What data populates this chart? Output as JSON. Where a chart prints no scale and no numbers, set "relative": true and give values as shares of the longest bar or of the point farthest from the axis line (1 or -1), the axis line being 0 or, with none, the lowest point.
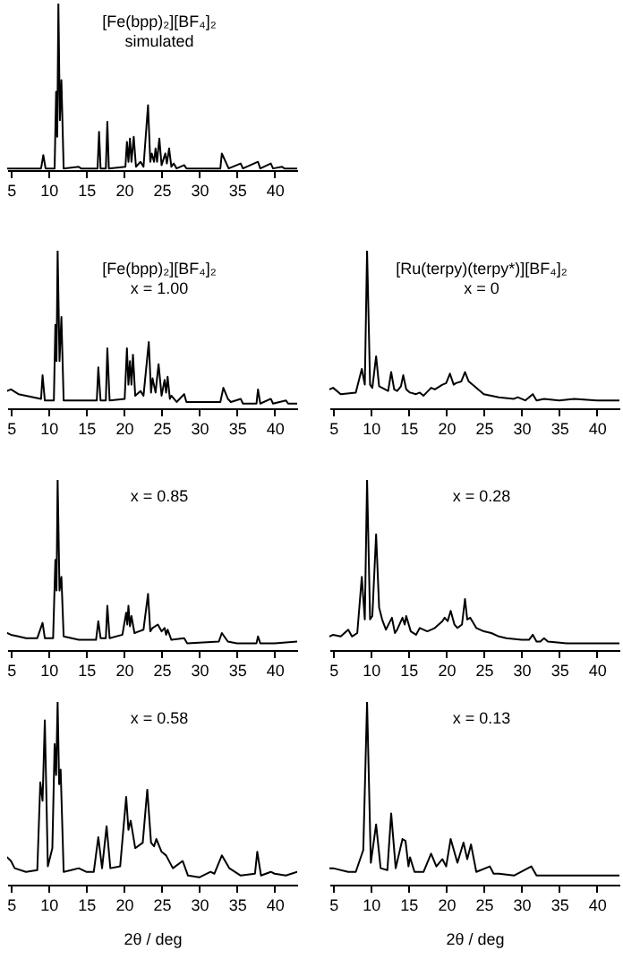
{
  "chart_data": [
    {
      "type": "line",
      "title": "[Fe(bpp)₂][BF₄]₂",
      "subtitle": "simulated",
      "relative": true,
      "xlim": [
        4.5,
        43
      ],
      "xticks": [
        5,
        10,
        15,
        20,
        25,
        30,
        35,
        40
      ],
      "tick_labels": "x",
      "marker": "none",
      "line_style": "solid",
      "series": [
        {
          "color": "#000000",
          "x": [
            4.5,
            9.0,
            9.3,
            9.6,
            10.8,
            11.0,
            11.15,
            11.3,
            11.5,
            11.7,
            12.0,
            14.0,
            14.3,
            16.5,
            16.7,
            16.9,
            17.6,
            17.8,
            18.0,
            20.2,
            20.4,
            20.6,
            20.8,
            21.0,
            21.3,
            21.6,
            22.2,
            22.6,
            23.2,
            23.5,
            23.7,
            24.0,
            24.2,
            24.4,
            24.7,
            25.0,
            25.5,
            25.7,
            26.0,
            26.3,
            26.6,
            27.0,
            28.0,
            28.3,
            32.8,
            33.0,
            33.5,
            33.9,
            35.5,
            35.8,
            37.8,
            38.1,
            39.5,
            39.8,
            41.0,
            41.3,
            43
          ],
          "values": [
            0.01,
            0.01,
            0.09,
            0.01,
            0.01,
            0.47,
            0.2,
            1,
            0.3,
            0.54,
            0.01,
            0.02,
            0.01,
            0.01,
            0.23,
            0.01,
            0.01,
            0.29,
            0.01,
            0.02,
            0.17,
            0.05,
            0.19,
            0.05,
            0.2,
            0.02,
            0.05,
            0.02,
            0.39,
            0.05,
            0.1,
            0.05,
            0.13,
            0.05,
            0.19,
            0.03,
            0.1,
            0.04,
            0.13,
            0.02,
            0.04,
            0.01,
            0.03,
            0.01,
            0.01,
            0.1,
            0.05,
            0.01,
            0.04,
            0.01,
            0.05,
            0.01,
            0.04,
            0.01,
            0.02,
            0.01,
            0.01
          ]
        }
      ]
    },
    {
      "type": "line",
      "title": "[Fe(bpp)₂][BF₄]₂",
      "subtitle": "x = 1.00",
      "relative": true,
      "xlim": [
        4.5,
        43
      ],
      "xticks": [
        5,
        10,
        15,
        20,
        25,
        30,
        35,
        40
      ],
      "tick_labels": "x",
      "marker": "none",
      "line_style": "solid",
      "series": [
        {
          "color": "#000000",
          "x": [
            4.5,
            5,
            6,
            8,
            9.0,
            9.2,
            9.5,
            10.7,
            10.9,
            11.05,
            11.2,
            11.45,
            11.7,
            12.0,
            14,
            16.4,
            16.6,
            16.9,
            17.6,
            17.8,
            18.1,
            20.1,
            20.4,
            20.6,
            20.8,
            21.0,
            21.2,
            21.5,
            22.2,
            22.6,
            23.3,
            23.6,
            23.8,
            24.2,
            24.6,
            25.0,
            25.4,
            25.6,
            25.8,
            26.1,
            26.3,
            27,
            28,
            28.3,
            32.8,
            33.2,
            33.8,
            34.2,
            35.5,
            35.8,
            37.6,
            37.8,
            38.1,
            39.5,
            39.8,
            41.5,
            41.8,
            43
          ],
          "values": [
            0.11,
            0.12,
            0.09,
            0.07,
            0.06,
            0.21,
            0.05,
            0.05,
            0.53,
            0.3,
            1,
            0.3,
            0.58,
            0.05,
            0.05,
            0.05,
            0.26,
            0.05,
            0.05,
            0.38,
            0.05,
            0.06,
            0.38,
            0.15,
            0.3,
            0.15,
            0.34,
            0.08,
            0.11,
            0.08,
            0.42,
            0.1,
            0.19,
            0.1,
            0.28,
            0.08,
            0.18,
            0.1,
            0.2,
            0.06,
            0.08,
            0.04,
            0.09,
            0.04,
            0.04,
            0.13,
            0.06,
            0.04,
            0.06,
            0.03,
            0.03,
            0.12,
            0.03,
            0.06,
            0.03,
            0.05,
            0.03,
            0.03
          ]
        }
      ]
    },
    {
      "type": "line",
      "title": "[Ru(terpy)(terpy*)][BF₄]₂",
      "subtitle": "x = 0",
      "relative": true,
      "xlim": [
        4.5,
        43
      ],
      "xticks": [
        5,
        10,
        15,
        20,
        25,
        30,
        35,
        40
      ],
      "tick_labels": "x",
      "marker": "none",
      "line_style": "solid",
      "series": [
        {
          "color": "#000000",
          "x": [
            4.5,
            5,
            6,
            8,
            8.8,
            9.2,
            9.5,
            9.9,
            10.2,
            10.7,
            11.1,
            11.5,
            12.3,
            12.7,
            13.1,
            13.5,
            14.0,
            14.3,
            14.7,
            15.2,
            16,
            16.5,
            17,
            18,
            18.5,
            19.5,
            20.0,
            20.5,
            21.0,
            21.3,
            22.0,
            22.5,
            23.0,
            23.5,
            25,
            26,
            27,
            29,
            29.5,
            30.5,
            31.5,
            32,
            33,
            35,
            37,
            40,
            43
          ],
          "values": [
            0.12,
            0.13,
            0.09,
            0.1,
            0.25,
            0.15,
            1,
            0.15,
            0.13,
            0.33,
            0.14,
            0.13,
            0.11,
            0.23,
            0.12,
            0.11,
            0.14,
            0.21,
            0.12,
            0.1,
            0.09,
            0.1,
            0.08,
            0.13,
            0.12,
            0.15,
            0.16,
            0.22,
            0.15,
            0.16,
            0.17,
            0.23,
            0.17,
            0.15,
            0.09,
            0.08,
            0.07,
            0.06,
            0.07,
            0.05,
            0.09,
            0.05,
            0.06,
            0.05,
            0.06,
            0.05,
            0.05
          ]
        }
      ]
    },
    {
      "type": "line",
      "title": "x = 0.85",
      "relative": true,
      "xlim": [
        4.5,
        43
      ],
      "xticks": [
        5,
        10,
        15,
        20,
        25,
        30,
        35,
        40
      ],
      "tick_labels": "x",
      "marker": "none",
      "line_style": "solid",
      "series": [
        {
          "color": "#000000",
          "x": [
            4.5,
            5,
            6,
            7,
            8.5,
            9.2,
            9.5,
            10.6,
            10.9,
            11.05,
            11.2,
            11.45,
            11.7,
            12.0,
            14,
            16.3,
            16.6,
            16.9,
            17.6,
            17.8,
            18.1,
            19.8,
            20.3,
            20.45,
            20.6,
            20.8,
            21.0,
            21.4,
            22,
            22.6,
            23.2,
            23.5,
            23.8,
            24.5,
            25.0,
            25.4,
            25.6,
            25.8,
            26.3,
            28,
            28.4,
            32.6,
            33.0,
            33.8,
            35,
            37.6,
            37.8,
            38.1,
            40,
            43
          ],
          "values": [
            0.1,
            0.09,
            0.08,
            0.07,
            0.07,
            0.16,
            0.07,
            0.07,
            0.53,
            0.35,
            1,
            0.35,
            0.43,
            0.08,
            0.06,
            0.06,
            0.17,
            0.07,
            0.07,
            0.26,
            0.07,
            0.09,
            0.22,
            0.15,
            0.26,
            0.14,
            0.2,
            0.1,
            0.11,
            0.12,
            0.33,
            0.11,
            0.13,
            0.15,
            0.11,
            0.13,
            0.09,
            0.12,
            0.06,
            0.07,
            0.04,
            0.05,
            0.1,
            0.05,
            0.04,
            0.04,
            0.08,
            0.04,
            0.04,
            0.05
          ]
        }
      ]
    },
    {
      "type": "line",
      "title": "x = 0.28",
      "relative": true,
      "xlim": [
        4.5,
        43
      ],
      "xticks": [
        5,
        10,
        15,
        20,
        25,
        30,
        35,
        40
      ],
      "tick_labels": "x",
      "marker": "none",
      "line_style": "solid",
      "series": [
        {
          "color": "#000000",
          "x": [
            4.5,
            5,
            6,
            7,
            7.5,
            8.2,
            8.8,
            9.2,
            9.5,
            9.9,
            10.2,
            10.7,
            11.1,
            11.5,
            12,
            12.8,
            13.2,
            13.5,
            14.2,
            14.5,
            14.7,
            15.3,
            16,
            16.5,
            17.5,
            18.5,
            19,
            19.5,
            19.8,
            20.2,
            20.6,
            21.1,
            21.5,
            22.1,
            22.5,
            22.8,
            23.2,
            24,
            25,
            26,
            27,
            28,
            30,
            31,
            31.5,
            32,
            32.5,
            33,
            33.5,
            36,
            40,
            43
          ],
          "values": [
            0.08,
            0.09,
            0.08,
            0.12,
            0.08,
            0.1,
            0.43,
            0.18,
            1,
            0.18,
            0.2,
            0.68,
            0.25,
            0.18,
            0.12,
            0.19,
            0.1,
            0.12,
            0.19,
            0.15,
            0.2,
            0.11,
            0.09,
            0.13,
            0.11,
            0.13,
            0.15,
            0.17,
            0.19,
            0.17,
            0.23,
            0.15,
            0.13,
            0.15,
            0.3,
            0.18,
            0.19,
            0.13,
            0.11,
            0.1,
            0.08,
            0.07,
            0.06,
            0.06,
            0.09,
            0.05,
            0.05,
            0.07,
            0.05,
            0.04,
            0.04,
            0.04
          ]
        }
      ]
    },
    {
      "type": "line",
      "title": "x = 0.58",
      "xlabel": "2θ / deg",
      "relative": true,
      "xlim": [
        4.5,
        43
      ],
      "xticks": [
        5,
        10,
        15,
        20,
        25,
        30,
        35,
        40
      ],
      "tick_labels": "x",
      "marker": "none",
      "line_style": "solid",
      "series": [
        {
          "color": "#000000",
          "x": [
            4.5,
            5,
            5.5,
            7,
            8.5,
            8.9,
            9.2,
            9.5,
            9.9,
            10.5,
            10.8,
            11.0,
            11.2,
            11.4,
            11.6,
            12,
            13,
            14,
            15,
            16,
            16.6,
            17.1,
            17.7,
            18.2,
            19.5,
            20.3,
            20.6,
            20.9,
            21.5,
            22.5,
            23.1,
            23.6,
            24.0,
            24.3,
            25,
            25.6,
            26.5,
            27.8,
            28.5,
            30,
            31.5,
            32,
            33,
            34,
            35.5,
            37.4,
            37.7,
            38.2,
            39.5,
            40,
            41.5,
            43
          ],
          "values": [
            0.15,
            0.13,
            0.09,
            0.07,
            0.08,
            0.56,
            0.46,
            0.9,
            0.1,
            0.2,
            0.77,
            0.6,
            1,
            0.55,
            0.63,
            0.07,
            0.08,
            0.09,
            0.07,
            0.07,
            0.26,
            0.09,
            0.32,
            0.09,
            0.1,
            0.48,
            0.3,
            0.35,
            0.2,
            0.23,
            0.52,
            0.23,
            0.21,
            0.25,
            0.18,
            0.16,
            0.09,
            0.13,
            0.05,
            0.04,
            0.07,
            0.06,
            0.16,
            0.09,
            0.05,
            0.06,
            0.18,
            0.05,
            0.07,
            0.06,
            0.05,
            0.07
          ]
        }
      ]
    },
    {
      "type": "line",
      "title": "x = 0.13",
      "xlabel": "2θ / deg",
      "relative": true,
      "xlim": [
        4.5,
        43
      ],
      "xticks": [
        5,
        10,
        15,
        20,
        25,
        30,
        35,
        40
      ],
      "tick_labels": "x",
      "marker": "none",
      "line_style": "solid",
      "series": [
        {
          "color": "#000000",
          "x": [
            4.5,
            5,
            7,
            8,
            9,
            9.5,
            10,
            10.7,
            11.3,
            12.2,
            12.7,
            13.3,
            14.2,
            14.6,
            15.0,
            15.2,
            15.8,
            17,
            18,
            18.7,
            19.5,
            20,
            20.6,
            21.5,
            22.3,
            22.8,
            23.3,
            24,
            25.8,
            26.3,
            27,
            29,
            31.3,
            32,
            35,
            39,
            43
          ],
          "values": [
            0.09,
            0.09,
            0.07,
            0.07,
            0.19,
            1,
            0.12,
            0.33,
            0.09,
            0.08,
            0.39,
            0.09,
            0.25,
            0.24,
            0.1,
            0.15,
            0.07,
            0.07,
            0.17,
            0.1,
            0.14,
            0.1,
            0.25,
            0.12,
            0.23,
            0.14,
            0.22,
            0.07,
            0.1,
            0.06,
            0.06,
            0.05,
            0.1,
            0.05,
            0.05,
            0.05,
            0.05
          ]
        }
      ]
    }
  ]
}
